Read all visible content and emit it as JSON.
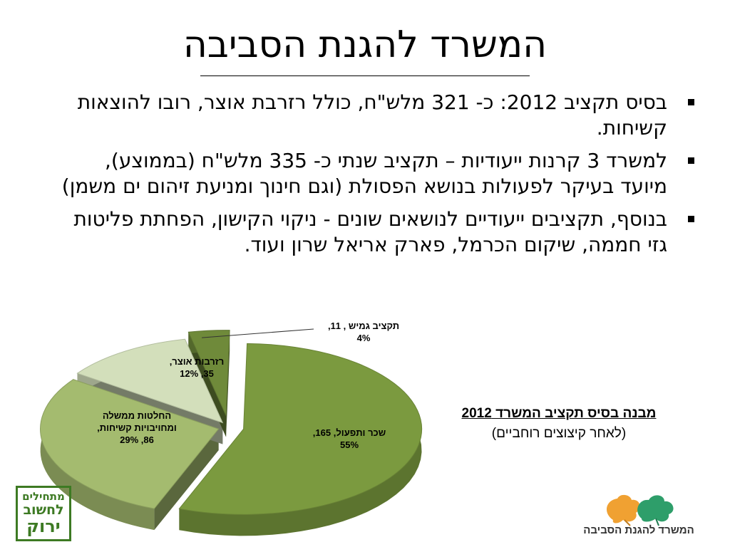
{
  "slide": {
    "title": "המשרד להגנת הסביבה",
    "bullets": [
      "בסיס תקציב 2012: כ- 321 מלש\"ח, כולל רזרבת אוצר, רובו להוצאות קשיחות.",
      "למשרד 3 קרנות ייעודיות – תקציב שנתי כ- 335 מלש\"ח (בממוצע), מיועד בעיקר לפעולות בנושא הפסולת (וגם חינוך ומניעת זיהום ים משמן)",
      "בנוסף, תקציבים ייעודיים לנושאים שונים - ניקוי הקישון, הפחתת פליטות גזי חממה, שיקום הכרמל, פארק אריאל שרון ועוד."
    ],
    "bullet_icon": "square-bullet-icon"
  },
  "caption": {
    "line1": "מבנה בסיס תקציב המשרד  2012",
    "line2": "(לאחר קיצוצים רוחביים)"
  },
  "logos": {
    "left": {
      "line1": "מתחילים",
      "line2": "לחשוב",
      "line3": "ירוק"
    },
    "right": {
      "org_name": "המשרד להגנת הסביבה",
      "icon": "leaves-logo-icon"
    }
  },
  "chart_data": {
    "type": "pie",
    "style": "3d-exploded",
    "slices": [
      {
        "name": "שכר ותפעול",
        "value": 165,
        "percent": "55%",
        "color": "#7b9a3f"
      },
      {
        "name": "החלטות ממשלה ומחויבויות קשיחות",
        "value": 86,
        "percent": "29%",
        "color": "#a4bb6f"
      },
      {
        "name": "רזרבות אוצר",
        "value": 35,
        "percent": "12%",
        "color": "#d3dfbb"
      },
      {
        "name": "תקציב גמיש",
        "value": 11,
        "percent": "4%",
        "color": "#6f8a3a"
      }
    ],
    "labels": [
      {
        "line1": "שכר ותפעול, 165,",
        "line2": "55%"
      },
      {
        "line1": "החלטות ממשלה",
        "line2": "ומחויבויות קשיחות,",
        "line3": "86, 29%"
      },
      {
        "line1": "רזרבות אוצר,",
        "line2": "35, 12%"
      },
      {
        "line1": "תקציב גמיש , 11,",
        "line2": "4%"
      }
    ]
  }
}
